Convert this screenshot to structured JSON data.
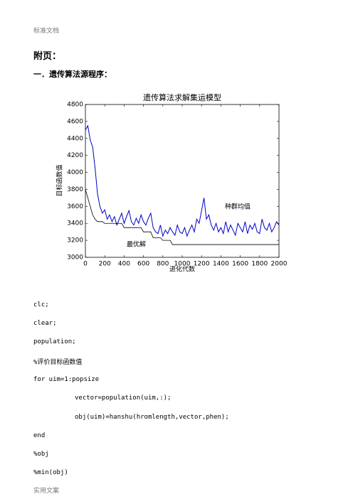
{
  "header": "标准文档",
  "heading": "附页：",
  "section": "一．遗传算法源程序：",
  "chart_data": {
    "type": "line",
    "title": "遗传算法求解集运模型",
    "xlabel": "进化代数",
    "ylabel": "目标函数值",
    "x": [
      0,
      25,
      50,
      75,
      100,
      125,
      150,
      175,
      200,
      225,
      250,
      275,
      300,
      325,
      350,
      375,
      400,
      425,
      450,
      475,
      500,
      525,
      550,
      575,
      600,
      625,
      650,
      675,
      700,
      725,
      750,
      775,
      800,
      825,
      850,
      875,
      900,
      925,
      950,
      975,
      1000,
      1025,
      1050,
      1075,
      1100,
      1125,
      1150,
      1175,
      1200,
      1225,
      1250,
      1275,
      1300,
      1325,
      1350,
      1375,
      1400,
      1425,
      1450,
      1475,
      1500,
      1525,
      1550,
      1575,
      1600,
      1625,
      1650,
      1675,
      1700,
      1725,
      1750,
      1775,
      1800,
      1825,
      1850,
      1875,
      1900,
      1925,
      1950,
      1975,
      2000
    ],
    "series": [
      {
        "name": "种群均值",
        "color": "#0000c8",
        "values": [
          4500,
          4550,
          4380,
          4300,
          4050,
          3750,
          3600,
          3520,
          3560,
          3450,
          3500,
          3420,
          3480,
          3380,
          3450,
          3520,
          3400,
          3480,
          3550,
          3420,
          3380,
          3460,
          3400,
          3500,
          3420,
          3380,
          3460,
          3520,
          3350,
          3300,
          3280,
          3380,
          3250,
          3320,
          3280,
          3350,
          3300,
          3260,
          3380,
          3300,
          3280,
          3350,
          3250,
          3320,
          3380,
          3300,
          3450,
          3400,
          3550,
          3700,
          3450,
          3500,
          3380,
          3320,
          3400,
          3300,
          3350,
          3280,
          3420,
          3300,
          3380,
          3320,
          3260,
          3400,
          3350,
          3300,
          3420,
          3280,
          3380,
          3330,
          3400,
          3300,
          3280,
          3450,
          3350,
          3320,
          3400,
          3300,
          3350,
          3420,
          3380
        ]
      },
      {
        "name": "最优解",
        "color": "#000000",
        "values": [
          3800,
          3700,
          3600,
          3500,
          3450,
          3420,
          3420,
          3420,
          3400,
          3400,
          3400,
          3400,
          3400,
          3400,
          3400,
          3400,
          3350,
          3350,
          3350,
          3350,
          3350,
          3350,
          3350,
          3350,
          3300,
          3300,
          3300,
          3300,
          3230,
          3230,
          3230,
          3230,
          3200,
          3200,
          3200,
          3200,
          3150,
          3150,
          3150,
          3150,
          3150,
          3150,
          3150,
          3150,
          3150,
          3150,
          3150,
          3150,
          3150,
          3150,
          3150,
          3150,
          3150,
          3150,
          3150,
          3150,
          3150,
          3150,
          3150,
          3150,
          3150,
          3150,
          3150,
          3150,
          3150,
          3150,
          3150,
          3150,
          3150,
          3150,
          3150,
          3150,
          3150,
          3150,
          3150,
          3150,
          3150,
          3150,
          3150,
          3150,
          3150
        ]
      }
    ],
    "xlim": [
      0,
      2000
    ],
    "xticks": [
      0,
      200,
      400,
      600,
      800,
      1000,
      1200,
      1400,
      1600,
      1800,
      2000
    ],
    "ylim": [
      3000,
      4800
    ],
    "yticks": [
      3000,
      3200,
      3400,
      3600,
      3800,
      4000,
      4200,
      4400,
      4600,
      4800
    ]
  },
  "code": [
    "clc;",
    "clear;",
    "population;",
    "%评价目标函数值",
    "for uim=1:popsize",
    "vector=population(uim,:);",
    "obj(uim)=hanshu(hromlength,vector,phen);",
    "end",
    "%obj",
    "%min(obj)"
  ],
  "footer": "实用文案"
}
